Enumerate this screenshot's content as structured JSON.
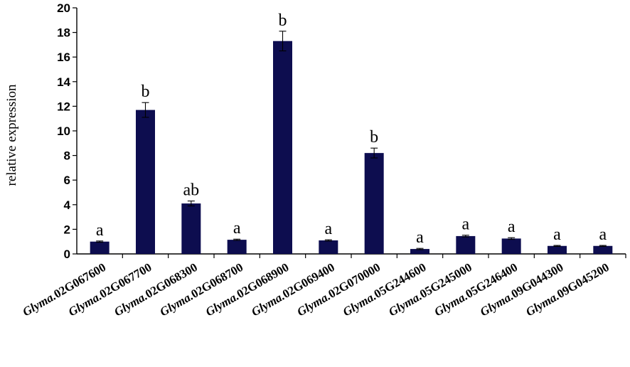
{
  "chart_data": {
    "type": "bar",
    "title": "",
    "xlabel": "",
    "ylabel": "relative expression",
    "ylim": [
      0,
      20
    ],
    "yticks": [
      0,
      2,
      4,
      6,
      8,
      10,
      12,
      14,
      16,
      18,
      20
    ],
    "grid": false,
    "legend": "none",
    "bar_color": "#0d0d4f",
    "categories": [
      {
        "prefix": "Glyma.",
        "suffix": "02G067600"
      },
      {
        "prefix": "Glyma.",
        "suffix": "02G067700"
      },
      {
        "prefix": "Glyma.",
        "suffix": "02G068300"
      },
      {
        "prefix": "Glyma.",
        "suffix": "02G068700"
      },
      {
        "prefix": "Glyma.",
        "suffix": "02G068900"
      },
      {
        "prefix": "Glyma.",
        "suffix": "02G069400"
      },
      {
        "prefix": "Glyma.",
        "suffix": "02G070000"
      },
      {
        "prefix": "Glyma.",
        "suffix": "05G244600"
      },
      {
        "prefix": "Glyma.",
        "suffix": "05G245000"
      },
      {
        "prefix": "Glyma.",
        "suffix": "05G246400"
      },
      {
        "prefix": "Glyma.",
        "suffix": "09G044300"
      },
      {
        "prefix": "Glyma.",
        "suffix": "09G045200"
      }
    ],
    "values": [
      1.0,
      11.7,
      4.1,
      1.15,
      17.3,
      1.1,
      8.2,
      0.4,
      1.45,
      1.25,
      0.65,
      0.65
    ],
    "errors": [
      0.05,
      0.6,
      0.2,
      0.05,
      0.8,
      0.05,
      0.4,
      0.05,
      0.07,
      0.07,
      0.04,
      0.04
    ],
    "significance": [
      "a",
      "b",
      "ab",
      "a",
      "b",
      "a",
      "b",
      "a",
      "a",
      "a",
      "a",
      "a"
    ]
  }
}
